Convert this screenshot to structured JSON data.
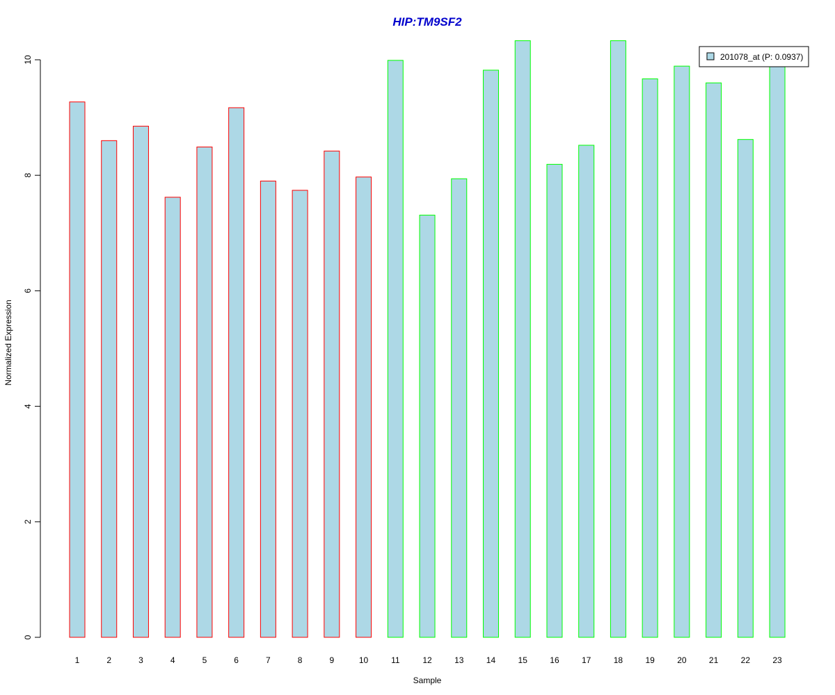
{
  "chart_data": {
    "type": "bar",
    "title": "HIP:TM9SF2",
    "xlabel": "Sample",
    "ylabel": "Normalized Expression",
    "categories": [
      "1",
      "2",
      "3",
      "4",
      "5",
      "6",
      "7",
      "8",
      "9",
      "10",
      "11",
      "12",
      "13",
      "14",
      "15",
      "16",
      "17",
      "18",
      "19",
      "20",
      "21",
      "22",
      "23"
    ],
    "values": [
      9.27,
      8.6,
      8.85,
      7.62,
      8.49,
      9.17,
      7.9,
      7.74,
      8.42,
      7.97,
      9.99,
      7.31,
      7.94,
      9.82,
      10.33,
      8.19,
      8.52,
      10.33,
      9.67,
      9.89,
      9.6,
      8.62,
      9.91
    ],
    "groups": [
      "red",
      "red",
      "red",
      "red",
      "red",
      "red",
      "red",
      "red",
      "red",
      "red",
      "green",
      "green",
      "green",
      "green",
      "green",
      "green",
      "green",
      "green",
      "green",
      "green",
      "green",
      "green",
      "green"
    ],
    "ylim": [
      0,
      10
    ],
    "yticks": [
      0,
      2,
      4,
      6,
      8,
      10
    ],
    "legend": {
      "label": "201078_at (P: 0.0937)",
      "position": "top-right"
    },
    "colors": {
      "fill": "#add8e6",
      "red": "#ff0000",
      "green": "#00ff00",
      "title": "#0000cc",
      "axis": "#000000"
    },
    "grid": false
  }
}
